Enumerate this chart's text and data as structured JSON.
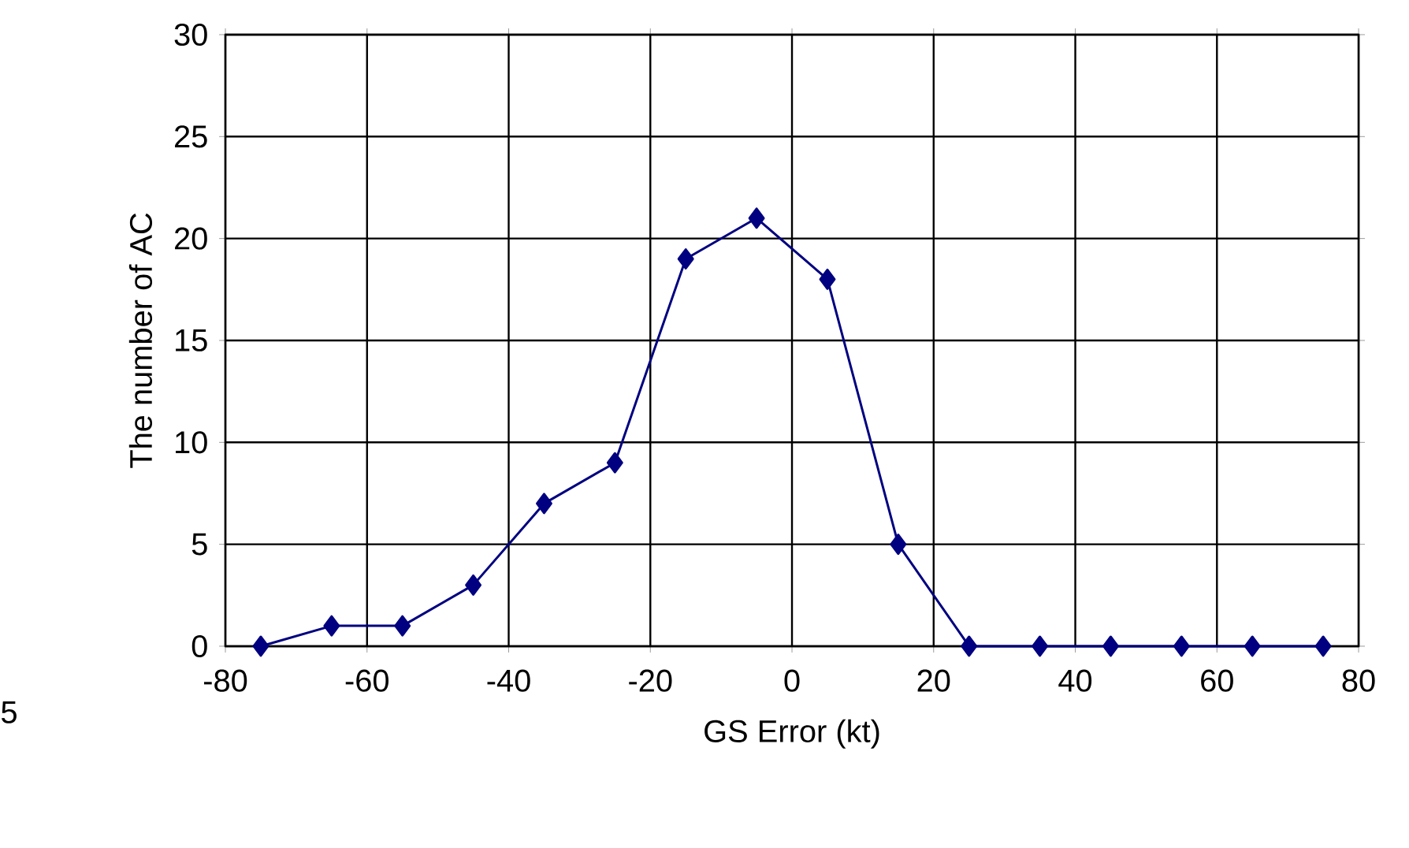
{
  "chart_data": {
    "type": "line",
    "xlabel": "GS Error (kt)",
    "ylabel": "The number of AC",
    "x": [
      -75,
      -65,
      -55,
      -45,
      -35,
      -25,
      -15,
      -5,
      5,
      15,
      25,
      35,
      45,
      55,
      65,
      75
    ],
    "series": [
      {
        "color": "#000080",
        "values": [
          0,
          1,
          1,
          3,
          7,
          9,
          19,
          21,
          18,
          5,
          0,
          0,
          0,
          0,
          0,
          0
        ]
      }
    ],
    "xlim": [
      -80,
      80
    ],
    "ylim": [
      0,
      30
    ],
    "xticks": [
      -80,
      -60,
      -40,
      -20,
      0,
      20,
      40,
      60,
      80
    ],
    "yticks": [
      0,
      5,
      10,
      15,
      20,
      25,
      30
    ],
    "grid": true,
    "marker": "diamond",
    "line_style": "solid",
    "annotations": [
      "5"
    ]
  }
}
